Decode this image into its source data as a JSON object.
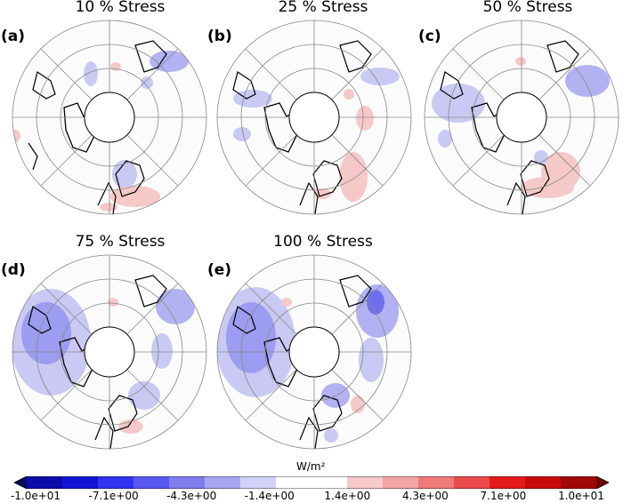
{
  "panels": [
    {
      "label": "(a)",
      "title": "10 % Stress"
    },
    {
      "label": "(b)",
      "title": "25 % Stress"
    },
    {
      "label": "(c)",
      "title": "50 % Stress"
    },
    {
      "label": "(d)",
      "title": "75 % Stress"
    },
    {
      "label": "(e)",
      "title": "100 % Stress"
    }
  ],
  "colorbar": {
    "unit": "W/m²",
    "ticks": [
      "-1.0e+01",
      "-7.1e+00",
      "-4.3e+00",
      "-1.4e+00",
      "1.4e+00",
      "4.3e+00",
      "7.1e+00",
      "1.0e+01"
    ],
    "colors": [
      "#08085e",
      "#0c0ca8",
      "#1414d8",
      "#3232f0",
      "#5858f0",
      "#7e7eef",
      "#a6a6f2",
      "#d2d2f8",
      "#ffffff",
      "#ffffff",
      "#f7caca",
      "#f3a4a4",
      "#ee7a7a",
      "#ea4a4a",
      "#e31a1a",
      "#c80a0a",
      "#a00808",
      "#6e0404"
    ]
  }
}
